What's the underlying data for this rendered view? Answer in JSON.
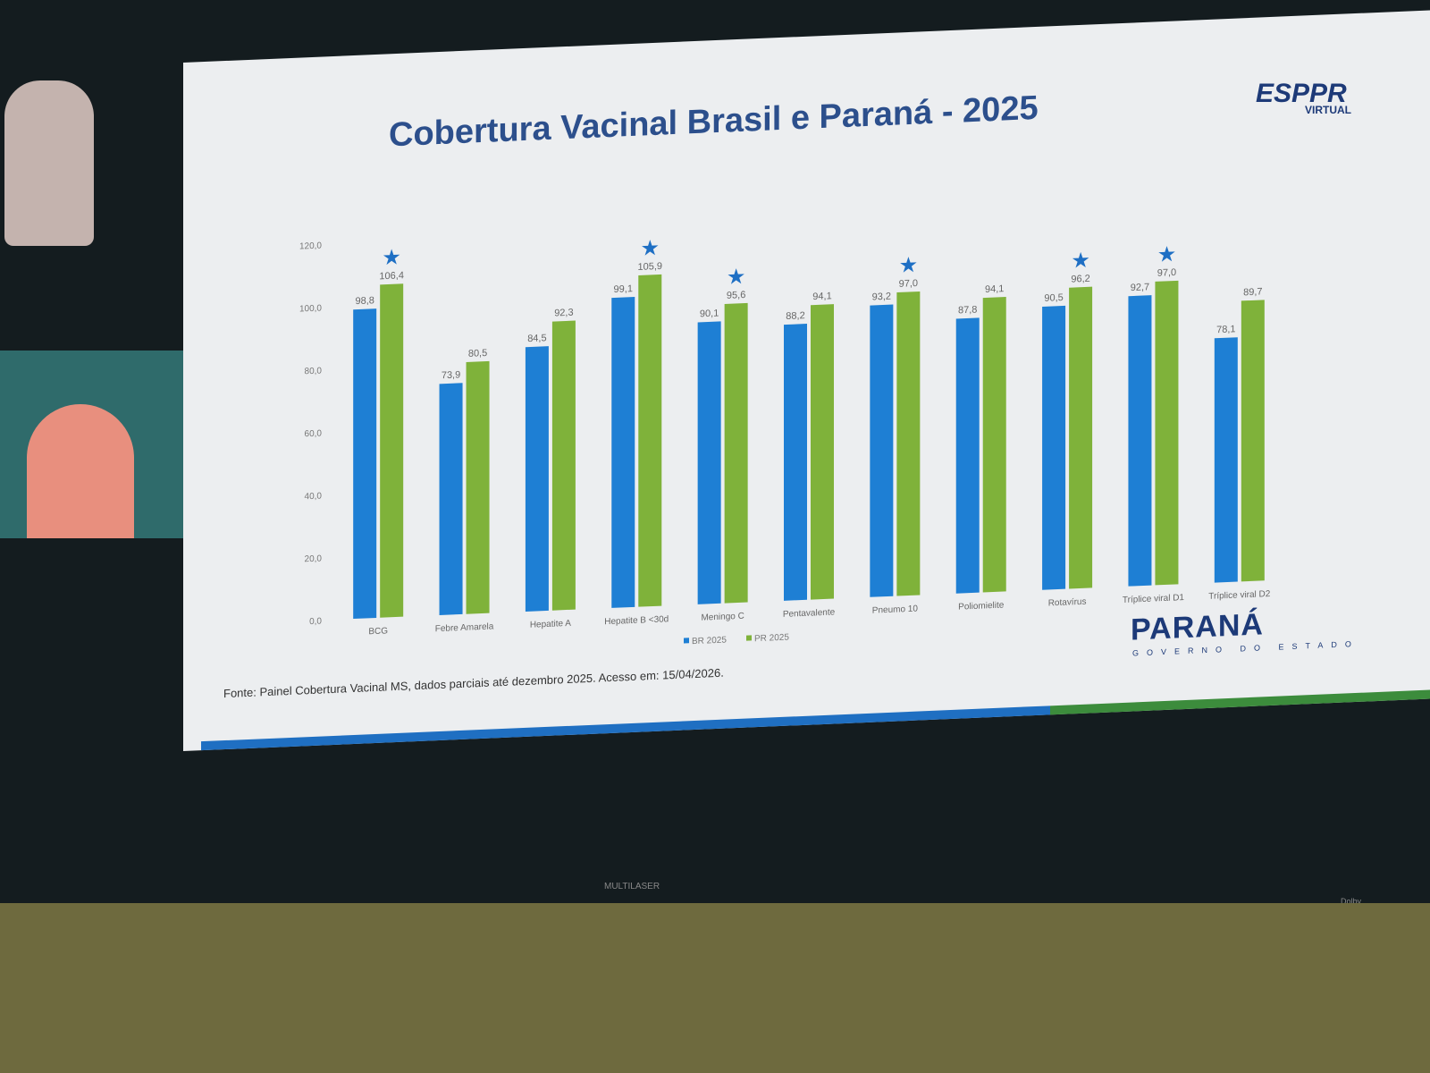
{
  "slide": {
    "title": "Cobertura Vacinal Brasil e Paraná - 2025",
    "source": "Fonte: Painel Cobertura Vacinal MS, dados parciais até dezembro 2025. Acesso em: 15/04/2026.",
    "logo_parana": "PARANÁ",
    "logo_parana_sub": "GOVERNO DO ESTADO",
    "logo_esppr": "ESPPR",
    "logo_esppr_sub": "VIRTUAL"
  },
  "tv": {
    "brand": "MULTILASER",
    "dolby": "Dolby"
  },
  "chart_data": {
    "type": "bar",
    "title": "Cobertura Vacinal Brasil e Paraná - 2025",
    "categories": [
      "BCG",
      "Febre Amarela",
      "Hepatite A",
      "Hepatite B <30d",
      "Meningo C",
      "Pentavalente",
      "Pneumo 10",
      "Poliomielite",
      "Rotavírus",
      "Tríplice viral D1",
      "Tríplice viral D2"
    ],
    "series": [
      {
        "name": "BR 2025",
        "color": "#1e7fd4",
        "values": [
          98.8,
          73.9,
          84.5,
          99.1,
          90.1,
          88.2,
          93.2,
          87.8,
          90.5,
          92.7,
          78.1
        ],
        "labels": [
          "98,8",
          "73,9",
          "84,5",
          "99,1",
          "90,1",
          "88,2",
          "93,2",
          "87,8",
          "90,5",
          "92,7",
          "78,1"
        ]
      },
      {
        "name": "PR 2025",
        "color": "#7fb23a",
        "values": [
          106.4,
          80.5,
          92.3,
          105.9,
          95.6,
          94.1,
          97.0,
          94.1,
          96.2,
          97.0,
          89.7
        ],
        "labels": [
          "106,4",
          "80,5",
          "92,3",
          "105,9",
          "95,6",
          "94,1",
          "97,0",
          "94,1",
          "96,2",
          "97,0",
          "89,7"
        ]
      }
    ],
    "star_markers": [
      true,
      false,
      false,
      true,
      true,
      false,
      true,
      false,
      true,
      true,
      false
    ],
    "yticks": [
      "0,0",
      "20,0",
      "40,0",
      "60,0",
      "80,0",
      "100,0",
      "120,0"
    ],
    "ylim": [
      0,
      120
    ],
    "grid": false,
    "legend": "bottom"
  }
}
